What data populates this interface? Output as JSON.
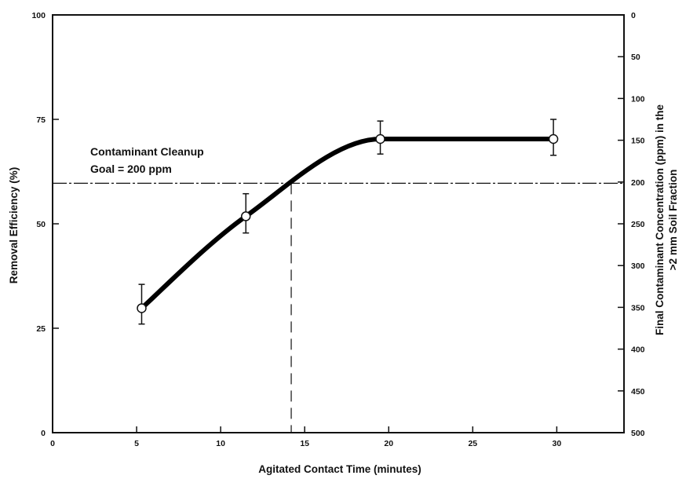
{
  "chart_data": {
    "type": "line",
    "xlabel": "Agitated Contact Time (minutes)",
    "ylabel": "Removal Efficiency (%)",
    "y2label_line1": "Final Contaminant Concentration (ppm) in the",
    "y2label_line2": ">2 mm Soil Fraction",
    "xlim": [
      0,
      34
    ],
    "ylim": [
      0,
      100
    ],
    "y2lim": [
      0,
      500
    ],
    "x_ticks": [
      "0",
      "5",
      "10",
      "15",
      "20",
      "25",
      "30"
    ],
    "y_ticks": [
      "0",
      "25",
      "50",
      "75",
      "100"
    ],
    "y2_ticks": [
      "0",
      "50",
      "100",
      "150",
      "200",
      "250",
      "300",
      "350",
      "400",
      "450",
      "500"
    ],
    "series": [
      {
        "points": [
          {
            "x": 5.3,
            "y": 29.8,
            "err_low": 26.0,
            "err_high": 35.5
          },
          {
            "x": 11.5,
            "y": 51.8,
            "err_low": 47.8,
            "err_high": 57.2
          },
          {
            "x": 19.5,
            "y": 70.3,
            "err_low": 66.7,
            "err_high": 74.6
          },
          {
            "x": 29.8,
            "y": 70.3,
            "err_low": 66.4,
            "err_high": 75.0
          }
        ]
      }
    ],
    "goal_line": {
      "y": 59.7
    },
    "goal_drop": {
      "x": 14.2
    },
    "annotation_line1": "Contaminant Cleanup",
    "annotation_line2": "Goal = 200 ppm",
    "grid": false,
    "legend": "none"
  }
}
